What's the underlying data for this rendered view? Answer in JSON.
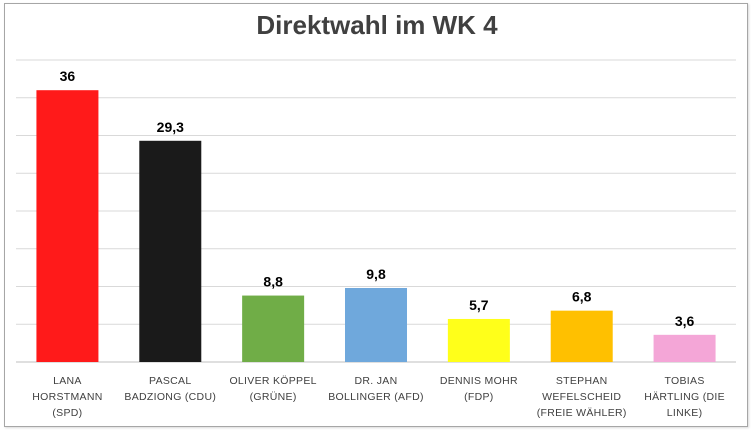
{
  "chart_data": {
    "type": "bar",
    "title": "Direktwahl im WK 4",
    "xlabel": "",
    "ylabel": "",
    "ylim": [
      0,
      40
    ],
    "grid": true,
    "legend": "none",
    "categories": [
      [
        "LANA",
        "HORSTMANN",
        "(SPD)"
      ],
      [
        "PASCAL",
        "BADZIONG (CDU)"
      ],
      [
        "OLIVER KÖPPEL",
        "(GRÜNE)"
      ],
      [
        "DR. JAN",
        "BOLLINGER (AFD)"
      ],
      [
        "DENNIS MOHR",
        "(FDP)"
      ],
      [
        "STEPHAN",
        "WEFELSCHEID",
        "(FREIE WÄHLER)"
      ],
      [
        "TOBIAS",
        "HÄRTLING (DIE",
        "LINKE)"
      ]
    ],
    "values": [
      36,
      29.3,
      8.8,
      9.8,
      5.7,
      6.8,
      3.6
    ],
    "value_labels": [
      "36",
      "29,3",
      "8,8",
      "9,8",
      "5,7",
      "6,8",
      "3,6"
    ],
    "colors": [
      "#ff1a1a",
      "#1a1a1a",
      "#70ad47",
      "#6fa8dc",
      "#ffff1a",
      "#ffc000",
      "#f4a6d7"
    ]
  }
}
